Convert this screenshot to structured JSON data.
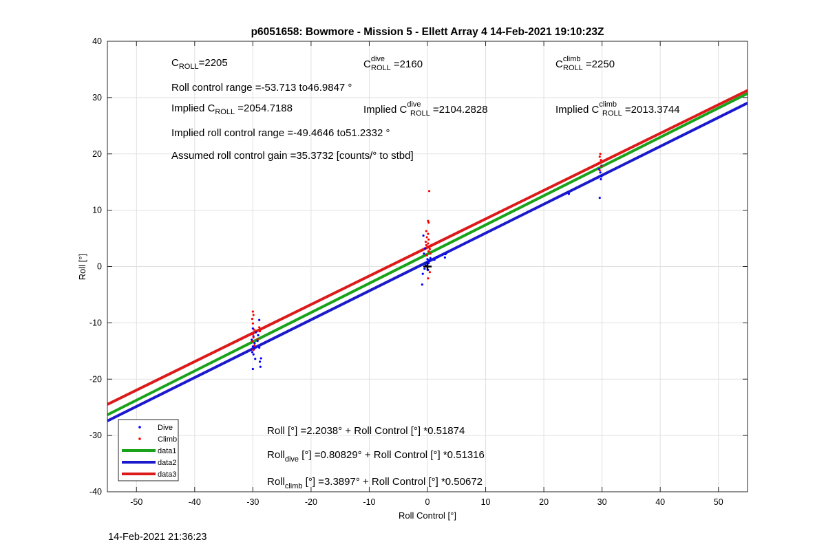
{
  "chart_data": {
    "type": "scatter",
    "title": "p6051658: Bowmore - Mission 5 - Ellett Array 4 14-Feb-2021 19:10:23Z",
    "xlabel": "Roll Control [°]",
    "ylabel": "Roll [°]",
    "xlim": [
      -55,
      55
    ],
    "ylim": [
      -40,
      40
    ],
    "xticks": [
      -50,
      -40,
      -30,
      -20,
      -10,
      0,
      10,
      20,
      30,
      40,
      50
    ],
    "yticks": [
      -40,
      -30,
      -20,
      -10,
      0,
      10,
      20,
      30,
      40
    ],
    "grid": true,
    "legend_position": "bottom-left",
    "series": [
      {
        "name": "Dive",
        "kind": "points",
        "color": "#0000ff",
        "points": [
          [
            -30,
            -18.2
          ],
          [
            -29.6,
            -16.4
          ],
          [
            -29.9,
            -15.6
          ],
          [
            -30.1,
            -15.2
          ],
          [
            -29.8,
            -14.7
          ],
          [
            -30,
            -14.2
          ],
          [
            -29.7,
            -13.6
          ],
          [
            -30.2,
            -13.0
          ],
          [
            -29.9,
            -12.4
          ],
          [
            -29.5,
            -11.7
          ],
          [
            -30,
            -11.0
          ],
          [
            -28.9,
            -14.4
          ],
          [
            -29.2,
            -13.2
          ],
          [
            -28.6,
            -16.3
          ],
          [
            -28.8,
            -16.9
          ],
          [
            -28.7,
            -17.8
          ],
          [
            -29.1,
            -12.2
          ],
          [
            -28.9,
            -9.5
          ],
          [
            -0.9,
            -3.2
          ],
          [
            -0.8,
            -1.3
          ],
          [
            -0.5,
            -0.4
          ],
          [
            -0.3,
            0.2
          ],
          [
            -0.1,
            0.8
          ],
          [
            0,
            1.3
          ],
          [
            0.2,
            0.6
          ],
          [
            0.3,
            1.1
          ],
          [
            -0.6,
            2.3
          ],
          [
            -0.4,
            3.2
          ],
          [
            -0.7,
            5.5
          ],
          [
            0.5,
            1.5
          ],
          [
            1.2,
            1.2
          ],
          [
            1.6,
            1.7
          ],
          [
            3.0,
            1.6
          ],
          [
            3.1,
            2.2
          ],
          [
            0.1,
            -0.6
          ],
          [
            24.3,
            12.9
          ],
          [
            29.6,
            12.2
          ],
          [
            29.8,
            15.5
          ],
          [
            29.9,
            16.0
          ],
          [
            29.7,
            16.7
          ],
          [
            29.5,
            17.3
          ],
          [
            29.9,
            17.9
          ]
        ]
      },
      {
        "name": "Climb",
        "kind": "points",
        "color": "#ff0000",
        "points": [
          [
            -30,
            -8.0
          ],
          [
            -29.9,
            -8.6
          ],
          [
            -30.1,
            -9.3
          ],
          [
            -30,
            -10.1
          ],
          [
            -29.8,
            -11.2
          ],
          [
            -30,
            -12.0
          ],
          [
            -29.9,
            -12.6
          ],
          [
            -30.1,
            -13.3
          ],
          [
            -29.7,
            -14.0
          ],
          [
            -29.9,
            -14.8
          ],
          [
            -28.9,
            -10.8
          ],
          [
            -28.8,
            -11.5
          ],
          [
            -29.2,
            -12.9
          ],
          [
            0.3,
            13.4
          ],
          [
            0.1,
            8.1
          ],
          [
            0.2,
            7.8
          ],
          [
            -0.2,
            6.3
          ],
          [
            0.1,
            5.8
          ],
          [
            -0.1,
            5.2
          ],
          [
            0.2,
            4.8
          ],
          [
            -0.3,
            4.4
          ],
          [
            0.1,
            4.1
          ],
          [
            -0.2,
            3.8
          ],
          [
            0.3,
            3.5
          ],
          [
            0.4,
            3.1
          ],
          [
            0.2,
            2.7
          ],
          [
            0.5,
            2.3
          ],
          [
            0.7,
            3.7
          ],
          [
            0.1,
            -2.1
          ],
          [
            0.4,
            -1.0
          ],
          [
            -0.1,
            2.0
          ],
          [
            29.7,
            20.0
          ],
          [
            29.6,
            19.5
          ],
          [
            29.8,
            18.9
          ],
          [
            29.5,
            18.4
          ],
          [
            29.9,
            17.8
          ],
          [
            29.6,
            17.1
          ]
        ]
      },
      {
        "name": "data1",
        "kind": "line",
        "color": "#1aa31a",
        "intercept": 2.2038,
        "slope": 0.51874
      },
      {
        "name": "data2",
        "kind": "line",
        "color": "#1a1acc",
        "intercept": 0.80829,
        "slope": 0.51316
      },
      {
        "name": "data3",
        "kind": "line",
        "color": "#dd1a1a",
        "intercept": 3.3897,
        "slope": 0.50672
      }
    ],
    "marker": {
      "x": 0,
      "y": 0,
      "shape": "plus",
      "color": "#000000"
    },
    "annotations": {
      "c_roll": {
        "base": "C",
        "sub": "ROLL",
        "value": "=2205"
      },
      "c_roll_dive": {
        "base": "C",
        "sup": "dive",
        "sub": "ROLL",
        "value": " =2160"
      },
      "c_roll_climb": {
        "base": "C",
        "sup": "climb",
        "sub": "ROLL",
        "value": " =2250"
      },
      "roll_control_range": "Roll control range =-53.713 to46.9847 °",
      "implied_c_roll": {
        "prefix": "Implied C",
        "sub": "ROLL",
        "value": " =2054.7188"
      },
      "implied_c_roll_dive": {
        "prefix": "Implied C",
        "sup": "dive",
        "sub": "ROLL",
        "value": " =2104.2828"
      },
      "implied_c_roll_climb": {
        "prefix": "Implied C",
        "sup": "climb",
        "sub": "ROLL",
        "value": " =2013.3744"
      },
      "implied_range": "Implied roll control range =-49.4646 to51.2332 °",
      "gain": "Assumed roll control gain =35.3732 [counts/° to stbd]",
      "fit_all": "Roll [°] =2.2038° + Roll Control [°] *0.51874",
      "fit_dive": {
        "base": "Roll",
        "sub": "dive",
        "rest": " [°] =0.80829° + Roll Control [°] *0.51316"
      },
      "fit_climb": {
        "base": "Roll",
        "sub": "climb",
        "rest": " [°] =3.3897° + Roll Control [°] *0.50672"
      }
    }
  },
  "footer_timestamp": "14-Feb-2021 21:36:23"
}
